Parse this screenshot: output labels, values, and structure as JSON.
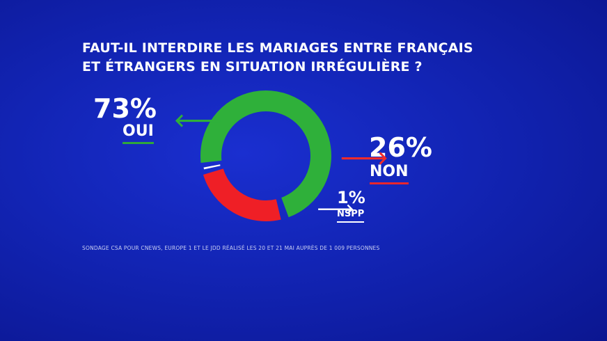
{
  "title_line1": "FAUT-IL INTERDIRE LES MARIAGES ENTRE FRANÇAIS",
  "title_line2": "ET ÉTRANGERS EN SITUATION IRRÉGULIÈRE ?",
  "source": "SONDAGE CSA POUR CNEWS, EUROPE 1 ET LE JDD RÉALISÉ LES 20 ET 21 MAI AUPRÈS DE 1 009 PERSONNES",
  "labels": {
    "oui_pct": "73%",
    "oui": "OUI",
    "non_pct": "26%",
    "non": "NON",
    "nspp_pct": "1%",
    "nspp": "NSPP",
    "oui_arrow": "🡐",
    "non_arrow": "🡒",
    "nspp_arrow": "🡒"
  },
  "colors": {
    "background": "#1224b4",
    "oui": "#2fb03a",
    "non": "#ef1f26",
    "nspp": "#ffffff"
  },
  "chart_data": {
    "type": "pie",
    "style": "donut",
    "categories": [
      "OUI",
      "NON",
      "NSPP"
    ],
    "values": [
      73,
      26,
      1
    ],
    "colors": [
      "#2fb03a",
      "#ef1f26",
      "#ffffff"
    ],
    "title": "FAUT-IL INTERDIRE LES MARIAGES ENTRE FRANÇAIS ET ÉTRANGERS EN SITUATION IRRÉGULIÈRE ?"
  }
}
